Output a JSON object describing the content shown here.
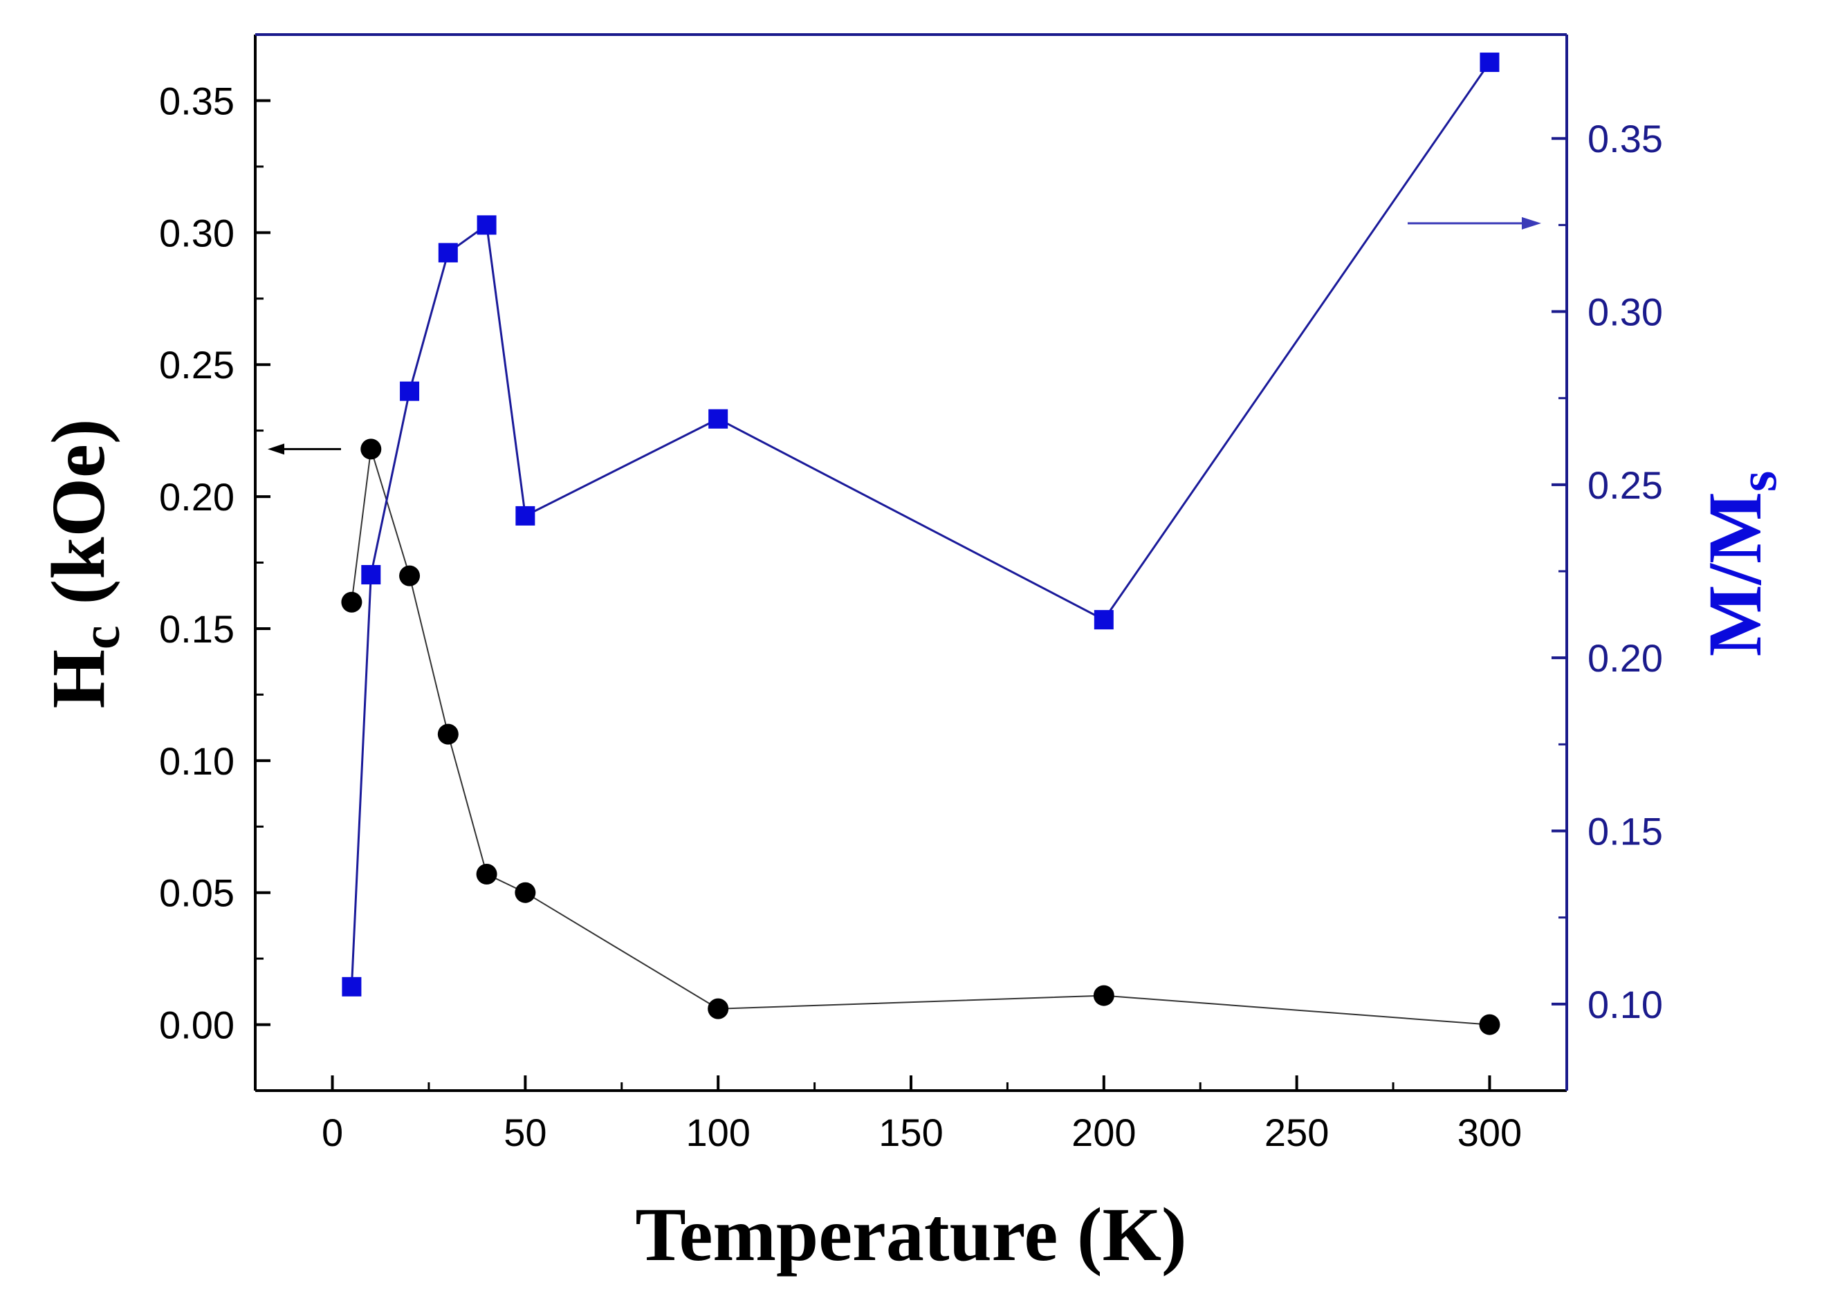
{
  "chart_data": {
    "type": "scatter",
    "x": [
      5,
      10,
      20,
      30,
      40,
      50,
      100,
      200,
      300
    ],
    "xlabel": "Temperature (K)",
    "xlim": [
      -20,
      320
    ],
    "xticks": [
      0,
      50,
      100,
      150,
      200,
      250,
      300
    ],
    "xtick_labels": [
      "0",
      "50",
      "100",
      "150",
      "200",
      "250",
      "300"
    ],
    "series": [
      {
        "name": "Hc",
        "axis": "left",
        "marker": "circle",
        "color": "#000000",
        "values": [
          0.16,
          0.218,
          0.17,
          0.11,
          0.057,
          0.05,
          0.006,
          0.011,
          0.0
        ]
      },
      {
        "name": "M/Ms",
        "axis": "right",
        "marker": "square",
        "color": "#0a0adc",
        "values": [
          0.105,
          0.224,
          0.277,
          0.317,
          0.325,
          0.241,
          0.269,
          0.211,
          0.372
        ]
      }
    ],
    "left_axis": {
      "label_main": "H",
      "label_sub": "c",
      "label_unit": "(kOe)",
      "ylim": [
        -0.025,
        0.375
      ],
      "ticks": [
        0.0,
        0.05,
        0.1,
        0.15,
        0.2,
        0.25,
        0.3,
        0.35
      ],
      "tick_labels": [
        "0.00",
        "0.05",
        "0.10",
        "0.15",
        "0.20",
        "0.25",
        "0.30",
        "0.35"
      ],
      "color": "#000000"
    },
    "right_axis": {
      "label_main": "M/M",
      "label_sub": "s",
      "ylim": [
        0.075,
        0.38
      ],
      "ticks": [
        0.1,
        0.15,
        0.2,
        0.25,
        0.3,
        0.35
      ],
      "tick_labels": [
        "0.10",
        "0.15",
        "0.20",
        "0.25",
        "0.30",
        "0.35"
      ],
      "color": "#1a1a8c"
    },
    "annotations": [
      {
        "type": "arrow",
        "direction": "left",
        "points_to": "left axis",
        "near_series": "Hc"
      },
      {
        "type": "arrow",
        "direction": "right",
        "points_to": "right axis",
        "near_series": "M/Ms"
      }
    ]
  }
}
